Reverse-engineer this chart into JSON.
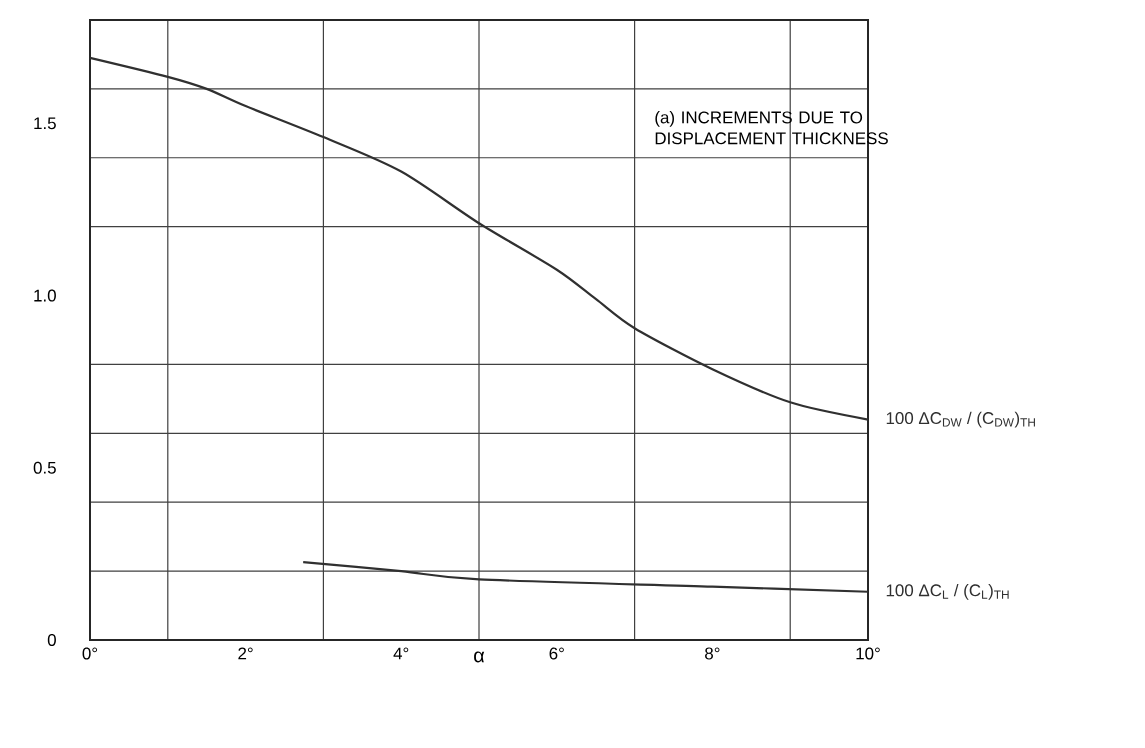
{
  "chart_data": {
    "type": "line",
    "title": "(a) INCREMENTS DUE TO DISPLACEMENT THICKNESS",
    "xlabel": "α",
    "series": [
      {
        "name": "100 ΔC$_{DW}$ / (C$_{DW}$)$_{TH}$",
        "color": "#303030",
        "x": [
          0,
          1,
          1.5,
          2,
          3,
          4,
          5,
          6,
          6.5,
          7,
          8,
          9,
          10
        ],
        "values": [
          1.69,
          1.635,
          1.6,
          1.55,
          1.46,
          1.36,
          1.21,
          1.075,
          0.99,
          0.905,
          0.786,
          0.69,
          0.64
        ]
      },
      {
        "name": "100 ΔC$_{L}$ / (C$_{L}$)$_{TH}$",
        "color": "#303030",
        "x": [
          2.74,
          4,
          5,
          8,
          10
        ],
        "values": [
          0.226,
          0.2,
          0.176,
          0.155,
          0.14
        ]
      }
    ],
    "xlim": [
      0,
      10
    ],
    "xticks": [
      {
        "value": 0,
        "label": "0°"
      },
      {
        "value": 1,
        "label": null
      },
      {
        "value": 2,
        "label": "2°"
      },
      {
        "value": 3,
        "label": null
      },
      {
        "value": 4,
        "label": "4°"
      },
      {
        "value": 5,
        "label": null
      },
      {
        "value": 6,
        "label": "6°"
      },
      {
        "value": 7,
        "label": null
      },
      {
        "value": 8,
        "label": "8°"
      },
      {
        "value": 9,
        "label": null
      },
      {
        "value": 10,
        "label": "10°"
      }
    ],
    "ylim": [
      0,
      1.8
    ],
    "yticks": [
      {
        "value": 0,
        "label": "0"
      },
      {
        "value": 0.2,
        "label": null
      },
      {
        "value": 0.4,
        "label": null
      },
      {
        "value": 0.5,
        "label": "0.5"
      },
      {
        "value": 0.6,
        "label": null
      },
      {
        "value": 0.8,
        "label": null
      },
      {
        "value": 1.0,
        "label": "1.0"
      },
      {
        "value": 1.2,
        "label": null
      },
      {
        "value": 1.4,
        "label": null
      },
      {
        "value": 1.5,
        "label": "1.5"
      },
      {
        "value": 1.6,
        "label": null
      },
      {
        "value": 1.8,
        "label": null
      }
    ],
    "grid": true,
    "line_style": "solid"
  }
}
